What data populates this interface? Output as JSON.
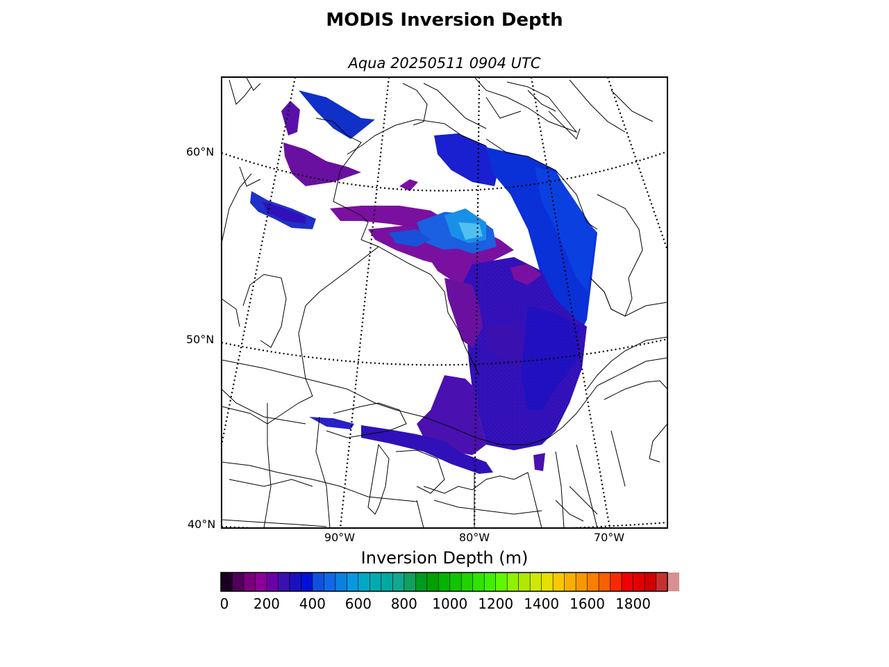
{
  "title": "MODIS Inversion Depth",
  "subtitle": "Aqua 20250511 0904 UTC",
  "map": {
    "region": "Hudson Bay / Great Lakes / Eastern Canada",
    "lat_labels": [
      "60°N",
      "50°N",
      "40°N"
    ],
    "lon_labels": [
      "90°W",
      "80°W",
      "70°W"
    ],
    "graticule_style": "dotted",
    "overlay_field": "inversion depth (m)"
  },
  "colorbar": {
    "label": "Inversion Depth (m)",
    "ticks": [
      "0",
      "200",
      "400",
      "600",
      "800",
      "1000",
      "1200",
      "1400",
      "1600",
      "1800"
    ],
    "min": 0,
    "max": 1950,
    "step": 50,
    "colors": [
      "#1a0020",
      "#50005a",
      "#7a007a",
      "#8a0099",
      "#6a00a8",
      "#3a10b0",
      "#1a10c0",
      "#0010d8",
      "#1050e0",
      "#1068e8",
      "#0a80e0",
      "#0898e0",
      "#00a8c8",
      "#00aab0",
      "#00aaa0",
      "#10a890",
      "#10a060",
      "#009a20",
      "#00a000",
      "#00b400",
      "#10c400",
      "#20d400",
      "#30e400",
      "#40f000",
      "#60f800",
      "#90f000",
      "#b0e800",
      "#d0e800",
      "#e8e000",
      "#f8c800",
      "#f8b000",
      "#f89800",
      "#f88000",
      "#f86000",
      "#f82800",
      "#f00000",
      "#e00000",
      "#d00000",
      "#c83030",
      "#d89090"
    ]
  }
}
